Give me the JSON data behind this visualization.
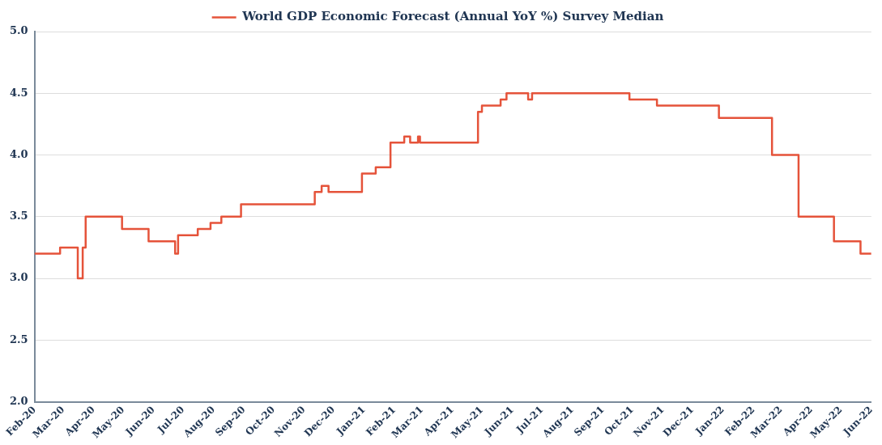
{
  "chart_data": {
    "type": "step",
    "series": [
      {
        "name": "World GDP Economic Forecast (Annual YoY %) Survey Median",
        "color": "#e5533a",
        "x": [
          "2020-02-01",
          "2020-02-27",
          "2020-03-16",
          "2020-03-21",
          "2020-03-24",
          "2020-04-30",
          "2020-05-27",
          "2020-06-23",
          "2020-06-26",
          "2020-07-16",
          "2020-07-29",
          "2020-08-09",
          "2020-08-29",
          "2020-11-12",
          "2020-11-19",
          "2020-11-26",
          "2020-12-30",
          "2021-01-13",
          "2021-01-28",
          "2021-02-11",
          "2021-02-17",
          "2021-02-25",
          "2021-02-27",
          "2021-04-27",
          "2021-05-01",
          "2021-05-20",
          "2021-05-26",
          "2021-06-17",
          "2021-06-21",
          "2021-09-28",
          "2021-10-26",
          "2021-12-28",
          "2022-02-20",
          "2022-03-19",
          "2022-04-24",
          "2022-05-21",
          "2022-06-01"
        ],
        "values": [
          3.2,
          3.25,
          3.0,
          3.25,
          3.5,
          3.4,
          3.3,
          3.2,
          3.35,
          3.4,
          3.45,
          3.5,
          3.6,
          3.7,
          3.75,
          3.7,
          3.85,
          3.9,
          4.1,
          4.15,
          4.1,
          4.15,
          4.1,
          4.35,
          4.4,
          4.45,
          4.5,
          4.45,
          4.5,
          4.45,
          4.4,
          4.3,
          4.0,
          3.5,
          3.3,
          3.2,
          3.2
        ]
      }
    ],
    "xlim": [
      "2020-02-01",
      "2022-06-01"
    ],
    "xticks": [
      {
        "value": "2020-02-01",
        "label": "Feb-20"
      },
      {
        "value": "2020-03-01",
        "label": "Mar-20"
      },
      {
        "value": "2020-04-01",
        "label": "Apr-20"
      },
      {
        "value": "2020-05-01",
        "label": "May-20"
      },
      {
        "value": "2020-06-01",
        "label": "Jun-20"
      },
      {
        "value": "2020-07-01",
        "label": "Jul-20"
      },
      {
        "value": "2020-08-01",
        "label": "Aug-20"
      },
      {
        "value": "2020-09-01",
        "label": "Sep-20"
      },
      {
        "value": "2020-10-01",
        "label": "Oct-20"
      },
      {
        "value": "2020-11-01",
        "label": "Nov-20"
      },
      {
        "value": "2020-12-01",
        "label": "Dec-20"
      },
      {
        "value": "2021-01-01",
        "label": "Jan-21"
      },
      {
        "value": "2021-02-01",
        "label": "Feb-21"
      },
      {
        "value": "2021-03-01",
        "label": "Mar-21"
      },
      {
        "value": "2021-04-01",
        "label": "Apr-21"
      },
      {
        "value": "2021-05-01",
        "label": "May-21"
      },
      {
        "value": "2021-06-01",
        "label": "Jun-21"
      },
      {
        "value": "2021-07-01",
        "label": "Jul-21"
      },
      {
        "value": "2021-08-01",
        "label": "Aug-21"
      },
      {
        "value": "2021-09-01",
        "label": "Sep-21"
      },
      {
        "value": "2021-10-01",
        "label": "Oct-21"
      },
      {
        "value": "2021-11-01",
        "label": "Nov-21"
      },
      {
        "value": "2021-12-01",
        "label": "Dec-21"
      },
      {
        "value": "2022-01-01",
        "label": "Jan-22"
      },
      {
        "value": "2022-02-01",
        "label": "Feb-22"
      },
      {
        "value": "2022-03-01",
        "label": "Mar-22"
      },
      {
        "value": "2022-04-01",
        "label": "Apr-22"
      },
      {
        "value": "2022-05-01",
        "label": "May-22"
      },
      {
        "value": "2022-06-01",
        "label": "Jun-22"
      }
    ],
    "ylim": [
      2.0,
      5.0
    ],
    "yticks": [
      {
        "value": 2.0,
        "label": "2.0"
      },
      {
        "value": 2.5,
        "label": "2.5"
      },
      {
        "value": 3.0,
        "label": "3.0"
      },
      {
        "value": 3.5,
        "label": "3.5"
      },
      {
        "value": 4.0,
        "label": "4.0"
      },
      {
        "value": 4.5,
        "label": "4.5"
      },
      {
        "value": 5.0,
        "label": "5.0"
      }
    ],
    "grid": "y",
    "legend": "top",
    "marker": "none",
    "line_style": "solid"
  }
}
